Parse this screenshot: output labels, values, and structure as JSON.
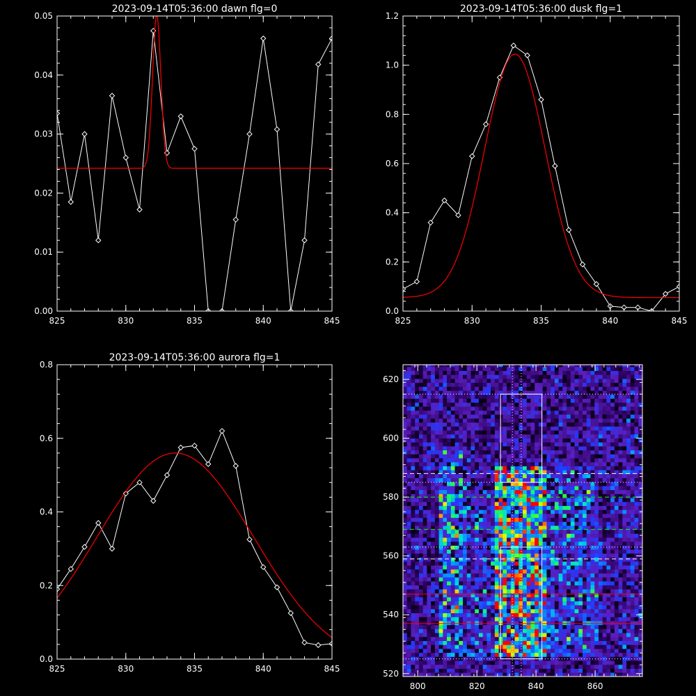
{
  "chart_data": [
    {
      "type": "line",
      "title": "2023-09-14T05:36:00 dawn flg=0",
      "xlim": [
        825,
        845
      ],
      "ylim": [
        0,
        0.05
      ],
      "xticks": [
        "825",
        "830",
        "835",
        "840",
        "845"
      ],
      "yticks": [
        "0.00",
        "0.01",
        "0.02",
        "0.03",
        "0.04",
        "0.05"
      ],
      "series": [
        {
          "color": "#ffffff",
          "marker": "diamond",
          "x": [
            825,
            826,
            827,
            828,
            829,
            830,
            831,
            832,
            833,
            834,
            835,
            836,
            837,
            838,
            839,
            840,
            841,
            842,
            843,
            844,
            845
          ],
          "y": [
            0.0335,
            0.0185,
            0.03,
            0.012,
            0.0365,
            0.026,
            0.0172,
            0.0475,
            0.0268,
            0.033,
            0.0275,
            0.0,
            0.0,
            0.0155,
            0.03,
            0.0462,
            0.0308,
            0.0,
            0.012,
            0.0418,
            0.0462
          ]
        },
        {
          "color": "#ff0000",
          "fit": {
            "model": "gaussian",
            "amplitude": 0.026,
            "center": 832.25,
            "sigma": 0.3,
            "offset": 0.0242
          }
        }
      ]
    },
    {
      "type": "line",
      "title": "2023-09-14T05:36:00 dusk flg=1",
      "xlim": [
        825,
        845
      ],
      "ylim": [
        0,
        1.2
      ],
      "xticks": [
        "825",
        "830",
        "835",
        "840",
        "845"
      ],
      "yticks": [
        "0.0",
        "0.2",
        "0.4",
        "0.6",
        "0.8",
        "1.0",
        "1.2"
      ],
      "series": [
        {
          "color": "#ffffff",
          "marker": "diamond",
          "x": [
            825,
            826,
            827,
            828,
            829,
            830,
            831,
            832,
            833,
            834,
            835,
            836,
            837,
            838,
            839,
            840,
            841,
            842,
            843,
            844,
            845
          ],
          "y": [
            0.09,
            0.12,
            0.36,
            0.45,
            0.39,
            0.63,
            0.76,
            0.95,
            1.08,
            1.04,
            0.86,
            0.59,
            0.33,
            0.19,
            0.11,
            0.02,
            0.015,
            0.015,
            0.0,
            0.07,
            0.1
          ]
        },
        {
          "color": "#ff0000",
          "fit": {
            "model": "gaussian",
            "amplitude": 0.99,
            "center": 833.1,
            "sigma": 2.2,
            "offset": 0.055
          }
        }
      ]
    },
    {
      "type": "line",
      "title": "2023-09-14T05:36:00 aurora flg=1",
      "xlim": [
        825,
        845
      ],
      "ylim": [
        0,
        0.8
      ],
      "xticks": [
        "825",
        "830",
        "835",
        "840",
        "845"
      ],
      "yticks": [
        "0.0",
        "0.2",
        "0.4",
        "0.6",
        "0.8"
      ],
      "series": [
        {
          "color": "#ffffff",
          "marker": "diamond",
          "x": [
            825,
            826,
            827,
            828,
            829,
            830,
            831,
            832,
            833,
            834,
            835,
            836,
            837,
            838,
            839,
            840,
            841,
            842,
            843,
            844,
            845
          ],
          "y": [
            0.19,
            0.245,
            0.305,
            0.37,
            0.3,
            0.45,
            0.48,
            0.43,
            0.5,
            0.575,
            0.58,
            0.53,
            0.62,
            0.525,
            0.325,
            0.25,
            0.195,
            0.125,
            0.045,
            0.038,
            0.042
          ]
        },
        {
          "color": "#ff0000",
          "fit": {
            "model": "gaussian",
            "amplitude": 0.58,
            "center": 833.6,
            "sigma": 5.7,
            "offset": -0.02
          }
        }
      ]
    },
    {
      "type": "heatmap",
      "title": "",
      "xlim": [
        795,
        876
      ],
      "ylim": [
        519,
        625
      ],
      "xticks": [
        "800",
        "820",
        "840",
        "860"
      ],
      "yticks": [
        "520",
        "540",
        "560",
        "580",
        "600",
        "620"
      ],
      "columns": [
        {
          "x_range": [
            795,
            806
          ],
          "base": 0.12,
          "peak": 0.25
        },
        {
          "x_range": [
            806,
            815
          ],
          "base": 0.22,
          "peak": 0.55,
          "y_range": [
            525,
            595
          ]
        },
        {
          "x_range": [
            815,
            826
          ],
          "base": 0.15,
          "peak": 0.38,
          "y_range": [
            525,
            585
          ]
        },
        {
          "x_range": [
            826,
            843
          ],
          "base": 0.3,
          "peak": 0.88,
          "y_range": [
            525,
            590
          ]
        },
        {
          "x_range": [
            843,
            860
          ],
          "base": 0.18,
          "peak": 0.42,
          "y_range": [
            525,
            590
          ]
        },
        {
          "x_range": [
            860,
            876
          ],
          "base": 0.12,
          "peak": 0.28
        }
      ],
      "boxes": [
        {
          "x": [
            828,
            842
          ],
          "y": [
            585,
            615
          ],
          "color": "#ffffff"
        },
        {
          "x": [
            828,
            842
          ],
          "y": [
            525,
            563
          ],
          "color": "#ffffff"
        }
      ],
      "vlines": [
        {
          "x": 832,
          "color": "#ffffff",
          "style": "dotted"
        },
        {
          "x": 835,
          "color": "#ffffff",
          "style": "dotted"
        }
      ],
      "hlines": [
        {
          "y": 615,
          "color": "#ffffff",
          "style": "dotted"
        },
        {
          "y": 588,
          "color": "#ffffff",
          "style": "dashed"
        },
        {
          "y": 585,
          "color": "#ffffff",
          "style": "dotted"
        },
        {
          "y": 580,
          "color": "#00ff00",
          "style": "dashed"
        },
        {
          "y": 569,
          "color": "#00ff00",
          "style": "dashed"
        },
        {
          "y": 563,
          "color": "#ffffff",
          "style": "dotted"
        },
        {
          "y": 559,
          "color": "#ffffff",
          "style": "dashed"
        },
        {
          "y": 547,
          "color": "#ff0000",
          "style": "solid"
        },
        {
          "y": 537,
          "color": "#ff0000",
          "style": "solid"
        },
        {
          "y": 525,
          "color": "#ffffff",
          "style": "dotted"
        }
      ]
    }
  ]
}
